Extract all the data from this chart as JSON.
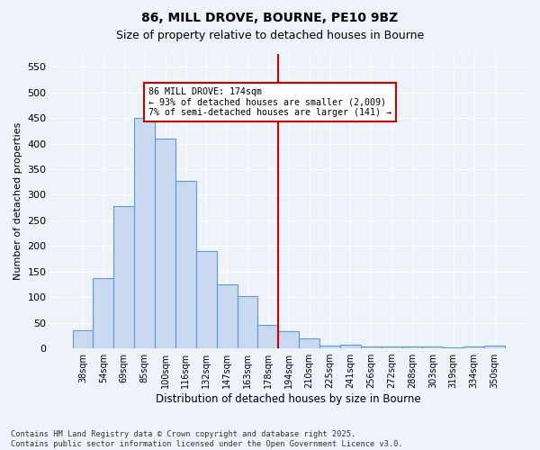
{
  "title1": "86, MILL DROVE, BOURNE, PE10 9BZ",
  "title2": "Size of property relative to detached houses in Bourne",
  "xlabel": "Distribution of detached houses by size in Bourne",
  "ylabel": "Number of detached properties",
  "bar_color": "#c9d9f0",
  "bar_edge_color": "#5b9bd5",
  "background_color": "#eef2f9",
  "grid_color": "#ffffff",
  "vline_color": "#cc0000",
  "annotation_text": "86 MILL DROVE: 174sqm\n← 93% of detached houses are smaller (2,009)\n7% of semi-detached houses are larger (141) →",
  "annotation_box_color": "#ffffff",
  "annotation_box_edge": "#cc0000",
  "categories": [
    "38sqm",
    "54sqm",
    "69sqm",
    "85sqm",
    "100sqm",
    "116sqm",
    "132sqm",
    "147sqm",
    "163sqm",
    "178sqm",
    "194sqm",
    "210sqm",
    "225sqm",
    "241sqm",
    "256sqm",
    "272sqm",
    "288sqm",
    "303sqm",
    "319sqm",
    "334sqm",
    "350sqm"
  ],
  "values": [
    35,
    138,
    278,
    450,
    410,
    328,
    190,
    125,
    102,
    45,
    33,
    20,
    6,
    8,
    4,
    3,
    4,
    3,
    2,
    3,
    5
  ],
  "vline_index": 9.5,
  "ylim": [
    0,
    575
  ],
  "yticks": [
    0,
    50,
    100,
    150,
    200,
    250,
    300,
    350,
    400,
    450,
    500,
    550
  ],
  "footer": "Contains HM Land Registry data © Crown copyright and database right 2025.\nContains public sector information licensed under the Open Government Licence v3.0."
}
